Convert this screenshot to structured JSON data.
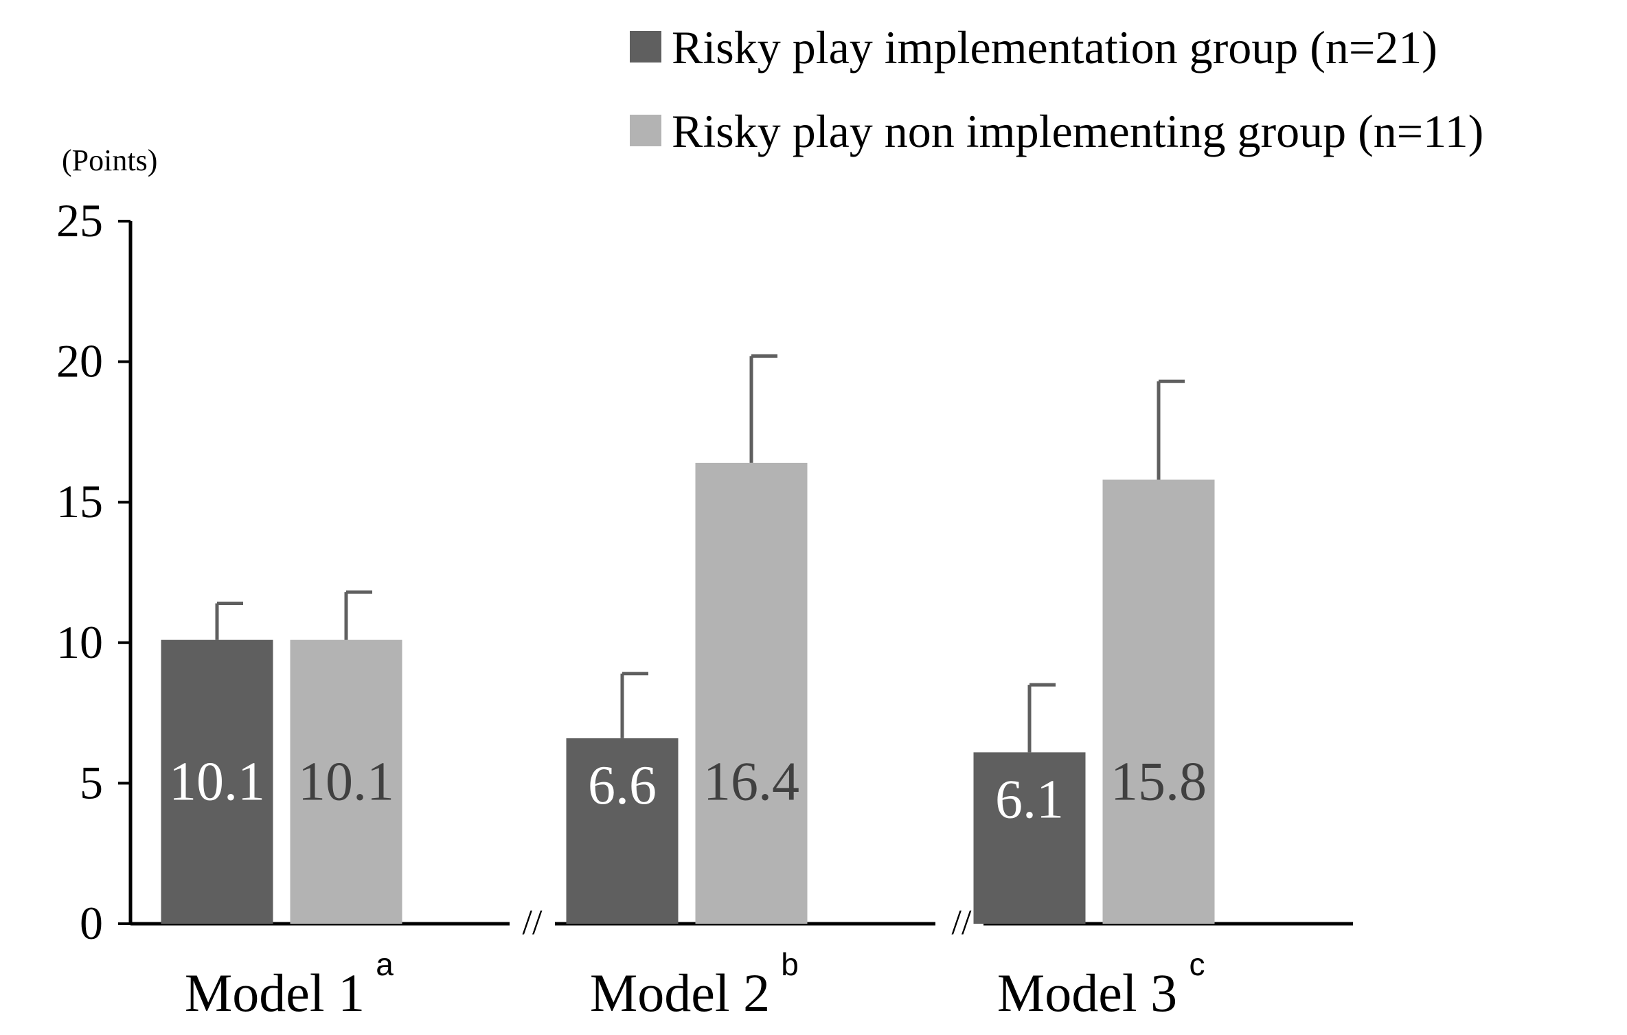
{
  "chart_data": {
    "type": "bar",
    "ylabel": "(Points)",
    "ylim": [
      0,
      25
    ],
    "yticks": [
      "0",
      "5",
      "10",
      "15",
      "20",
      "25"
    ],
    "grid": false,
    "legend_position": "top-right",
    "axis_break_marks": [
      "//",
      "//"
    ],
    "categories": [
      {
        "label": "Model 1",
        "superscript": "a"
      },
      {
        "label": "Model 2",
        "superscript": "b"
      },
      {
        "label": "Model 3",
        "superscript": "c"
      }
    ],
    "series": [
      {
        "name": "Risky play implementation group (n=21)",
        "color": "#5f5f5f",
        "label_color": "#ffffff",
        "values": [
          10.1,
          6.6,
          6.1
        ],
        "labels": [
          "10.1",
          "6.6",
          "6.1"
        ],
        "error_upper": [
          11.4,
          8.9,
          8.5
        ]
      },
      {
        "name": "Risky play non implementing group (n=11)",
        "color": "#b3b3b3",
        "label_color": "#404040",
        "values": [
          10.1,
          16.4,
          15.8
        ],
        "labels": [
          "10.1",
          "16.4",
          "15.8"
        ],
        "error_upper": [
          11.8,
          20.2,
          19.3
        ]
      }
    ]
  }
}
